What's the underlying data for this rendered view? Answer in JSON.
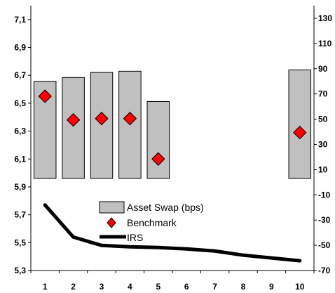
{
  "chart_data": {
    "type": "combo",
    "title": "",
    "categories": [
      "1",
      "2",
      "3",
      "4",
      "5",
      "6",
      "7",
      "8",
      "9",
      "10"
    ],
    "x": [
      1,
      2,
      3,
      4,
      5,
      6,
      7,
      8,
      9,
      10
    ],
    "y_left": {
      "range": [
        5.3,
        7.2
      ],
      "ticks": [
        "5,3",
        "5,5",
        "5,7",
        "5,9",
        "6,1",
        "6,3",
        "6,5",
        "6,7",
        "6,9",
        "7,1"
      ],
      "tick_values": [
        5.3,
        5.5,
        5.7,
        5.9,
        6.1,
        6.3,
        6.5,
        6.7,
        6.9,
        7.1
      ]
    },
    "y_right": {
      "range": [
        -70,
        140
      ],
      "ticks": [
        "-70",
        "-50",
        "-30",
        "-10",
        "10",
        "30",
        "50",
        "70",
        "90",
        "110",
        "130"
      ],
      "tick_values": [
        -70,
        -50,
        -30,
        -10,
        10,
        30,
        50,
        70,
        90,
        110,
        130
      ]
    },
    "grid": false,
    "legend_position": "center",
    "series": [
      {
        "name": "Asset Swap (bps)",
        "type": "bar",
        "axis": "right",
        "color": "#c0c0c0",
        "baseline": 3,
        "values": [
          80,
          83,
          87,
          88,
          64,
          null,
          null,
          null,
          null,
          89
        ]
      },
      {
        "name": "Benchmark",
        "type": "marker",
        "axis": "left",
        "color": "#ff0000",
        "values": [
          6.55,
          6.38,
          6.39,
          6.39,
          6.1,
          null,
          null,
          null,
          null,
          6.29
        ]
      },
      {
        "name": "IRS",
        "type": "line",
        "axis": "left",
        "color": "#000000",
        "values": [
          5.77,
          5.54,
          5.48,
          5.47,
          5.465,
          5.455,
          5.44,
          5.41,
          5.39,
          5.37
        ]
      }
    ]
  }
}
